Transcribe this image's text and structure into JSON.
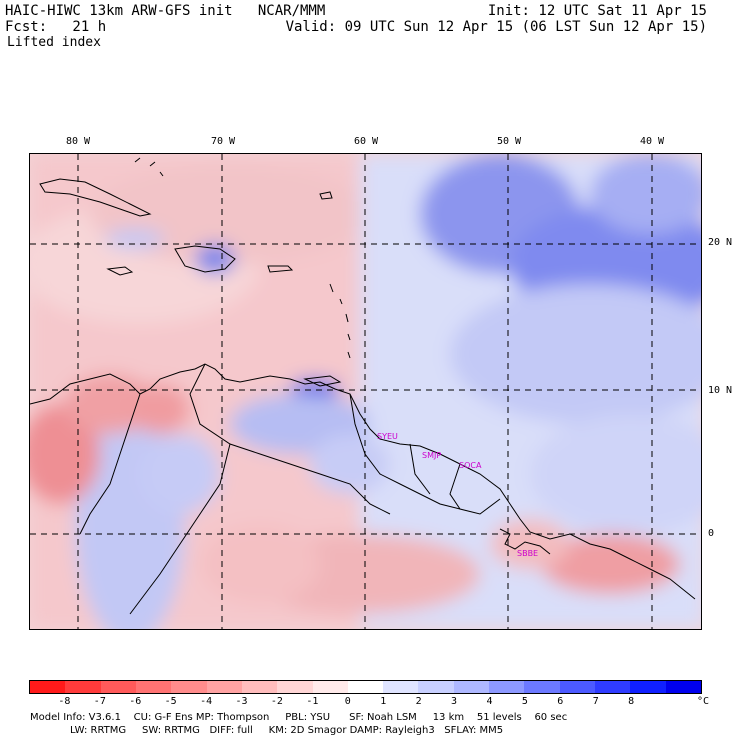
{
  "header": {
    "line1_left": "HAIC-HIWC 13km ARW-GFS init   NCAR/MMM",
    "line1_right": "Init: 12 UTC Sat 11 Apr 15",
    "line2_left": "Fcst:   21 h",
    "line2_right": "Valid: 09 UTC Sun 12 Apr 15 (06 LST Sun 12 Apr 15)",
    "field": "Lifted index"
  },
  "map": {
    "lon_labels": [
      "80 W",
      "70 W",
      "60 W",
      "50 W",
      "40 W"
    ],
    "lat_labels": [
      "20 N",
      "10 N",
      "0"
    ],
    "stations": [
      "SYEU",
      "SMJP",
      "SOCA",
      "SBBE"
    ]
  },
  "colorbar": {
    "ticks": [
      "-8",
      "-7",
      "-6",
      "-5",
      "-4",
      "-3",
      "-2",
      "-1",
      "0",
      "1",
      "2",
      "3",
      "4",
      "5",
      "6",
      "7",
      "8"
    ],
    "unit": "°C",
    "colors": [
      "#ff1a1a",
      "#ff3b3b",
      "#ff5a5a",
      "#ff7373",
      "#ff8c8c",
      "#ffa3a3",
      "#ffbdbd",
      "#ffd6d6",
      "#ffeaea",
      "#ffffff",
      "#dfe4ff",
      "#c8d0ff",
      "#aeb8ff",
      "#8d99ff",
      "#6c79ff",
      "#4c5aff",
      "#2f3cff",
      "#1020ff",
      "#0000ee"
    ]
  },
  "footer": {
    "line1": "Model Info: V3.6.1    CU: G-F Ens MP: Thompson     PBL: YSU      SF: Noah LSM     13 km    51 levels    60 sec",
    "line2": "LW: RRTMG     SW: RRTMG   DIFF: full     KM: 2D Smagor DAMP: Rayleigh3   SFLAY: MM5"
  }
}
